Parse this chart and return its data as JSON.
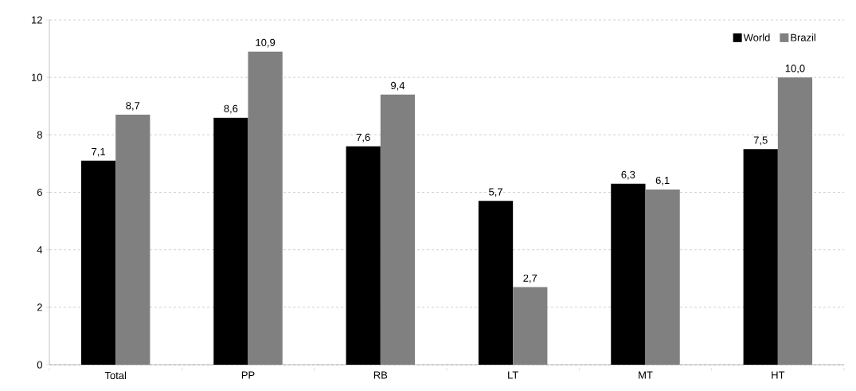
{
  "chart_data": {
    "type": "bar",
    "categories": [
      "Total",
      "PP",
      "RB",
      "LT",
      "MT",
      "HT"
    ],
    "series": [
      {
        "name": "World",
        "color": "#000000",
        "values": [
          7.1,
          8.6,
          7.6,
          5.7,
          6.3,
          7.5
        ],
        "value_labels": [
          "7,1",
          "8,6",
          "7,6",
          "5,7",
          "6,3",
          "7,5"
        ]
      },
      {
        "name": "Brazil",
        "color": "#808080",
        "values": [
          8.7,
          10.9,
          9.4,
          2.7,
          6.1,
          10.0
        ],
        "value_labels": [
          "8,7",
          "10,9",
          "9,4",
          "2,7",
          "6,1",
          "10,0"
        ]
      }
    ],
    "ylim": [
      0,
      12
    ],
    "yticks": [
      0,
      2,
      4,
      6,
      8,
      10,
      12
    ],
    "grid": "y",
    "legend": "top right"
  }
}
